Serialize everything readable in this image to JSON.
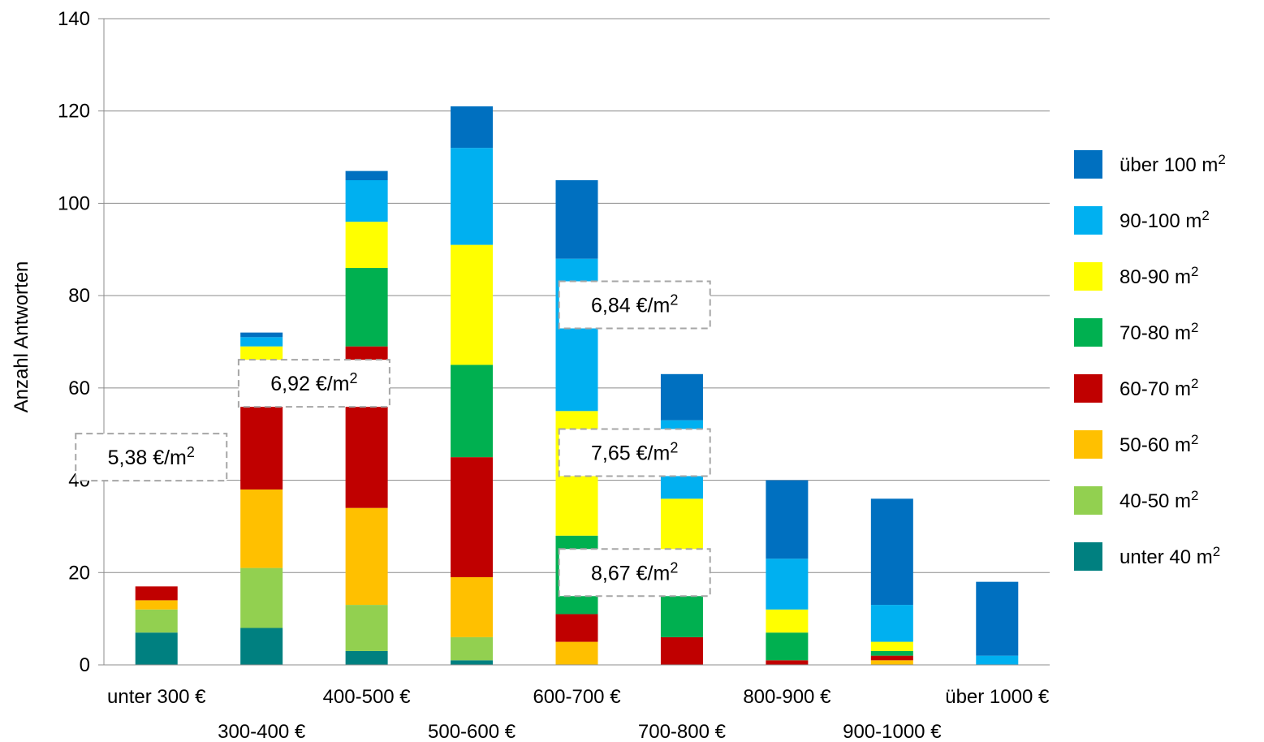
{
  "chart_data": {
    "type": "bar",
    "stacked": true,
    "ylabel": "Anzahl Antworten",
    "ylim": [
      0,
      140
    ],
    "yticks": [
      0,
      20,
      40,
      60,
      80,
      100,
      120,
      140
    ],
    "grid": true,
    "legend_position": "right",
    "categories": [
      "unter 300 €",
      "300-400 €",
      "400-500 €",
      "500-600 €",
      "600-700 €",
      "700-800 €",
      "800-900 €",
      "900-1000 €",
      "über 1000 €"
    ],
    "series": [
      {
        "name": "unter 40 m²",
        "color": "#008080",
        "values": [
          7,
          8,
          3,
          1,
          0,
          0,
          0,
          0,
          0
        ]
      },
      {
        "name": "40-50 m²",
        "color": "#92D050",
        "values": [
          5,
          13,
          10,
          5,
          0,
          0,
          0,
          0,
          0
        ]
      },
      {
        "name": "50-60 m²",
        "color": "#FFC000",
        "values": [
          2,
          17,
          21,
          13,
          5,
          0,
          0,
          1,
          0
        ]
      },
      {
        "name": "60-70 m²",
        "color": "#C00000",
        "values": [
          3,
          19,
          35,
          26,
          6,
          6,
          1,
          1,
          0
        ]
      },
      {
        "name": "70-80  m²",
        "color": "#00B050",
        "values": [
          0,
          8,
          17,
          20,
          17,
          14,
          6,
          1,
          0
        ]
      },
      {
        "name": "80-90 m²",
        "color": "#FFFF00",
        "values": [
          0,
          4,
          10,
          26,
          27,
          16,
          5,
          2,
          0
        ]
      },
      {
        "name": "90-100 m²",
        "color": "#00B0F0",
        "values": [
          0,
          2,
          9,
          21,
          33,
          17,
          11,
          8,
          2
        ]
      },
      {
        "name": "über 100 m²",
        "color": "#0070C0",
        "values": [
          0,
          1,
          2,
          9,
          17,
          10,
          17,
          23,
          16
        ]
      }
    ],
    "annotations": [
      {
        "text": "5,38 €/m²",
        "x": "unter 300 €",
        "y": 45
      },
      {
        "text": "6,92 €/m²",
        "x": "300-400 €",
        "y": 61
      },
      {
        "text": "6,84 €/m²",
        "x": "600-700 €",
        "y": 78
      },
      {
        "text": "7,65 €/m²",
        "x": "600-700 €",
        "y": 46
      },
      {
        "text": "8,67 €/m²",
        "x": "600-700 €",
        "y": 20
      }
    ]
  }
}
